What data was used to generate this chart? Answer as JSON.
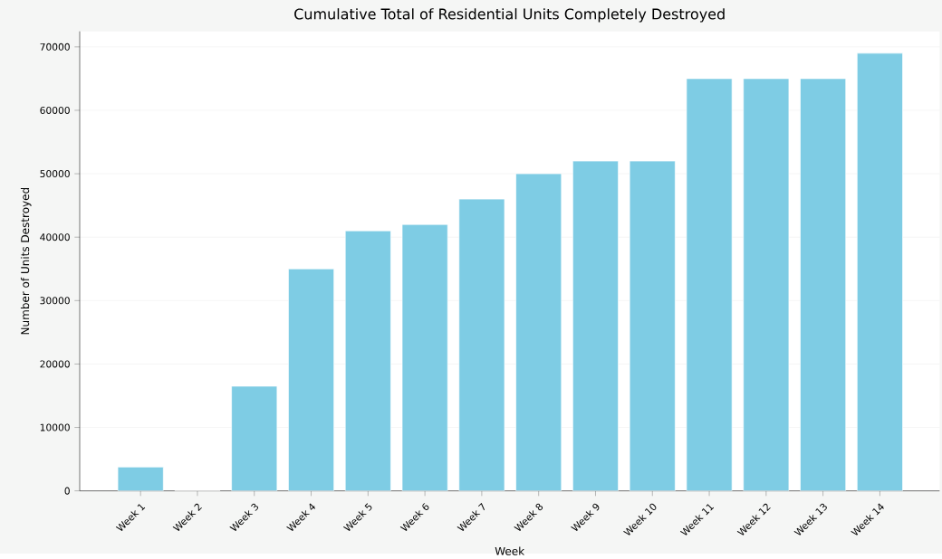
{
  "chart_data": {
    "type": "bar",
    "title": "Cumulative Total of Residential Units Completely Destroyed",
    "xlabel": "Week",
    "ylabel": "Number of Units Destroyed",
    "categories": [
      "Week 1",
      "Week 2",
      "Week 3",
      "Week 4",
      "Week 5",
      "Week 6",
      "Week 7",
      "Week 8",
      "Week 9",
      "Week 10",
      "Week 11",
      "Week 12",
      "Week 13",
      "Week 14"
    ],
    "values": [
      3750,
      0,
      16500,
      35000,
      41000,
      42000,
      46000,
      50000,
      52000,
      52000,
      65000,
      65000,
      65000,
      69000
    ],
    "color": "#7ecce4",
    "ylim": [
      0,
      72450
    ],
    "yticks": [
      0,
      10000,
      20000,
      30000,
      40000,
      50000,
      60000,
      70000
    ],
    "grid": "y"
  }
}
